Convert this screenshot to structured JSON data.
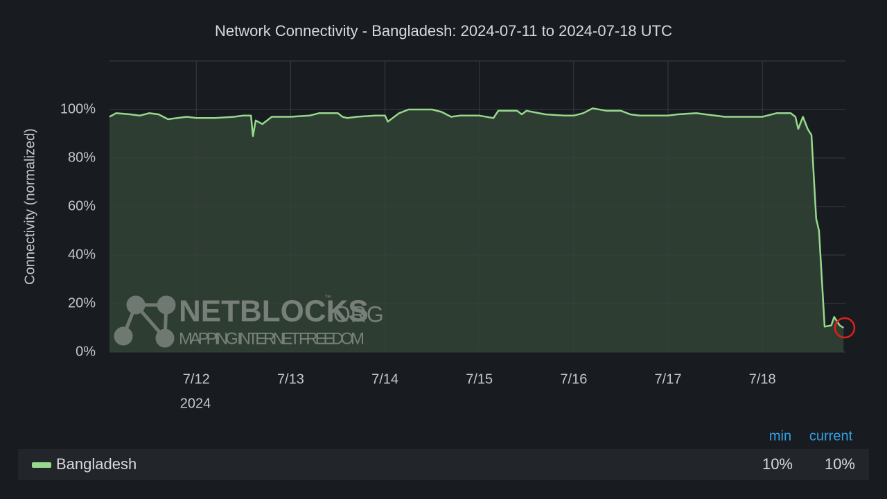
{
  "chart_data": {
    "type": "line",
    "title": "Network Connectivity - Bangladesh: 2024-07-11 to 2024-07-18 UTC",
    "y_label": "Connectivity (normalized)",
    "x_year_label": "2024",
    "watermark": {
      "brand": "NETBLOCKS",
      "suffix": ".ORG",
      "tm": "™",
      "tagline": "MAPPING INTERNET FREEDOM"
    },
    "xlim": [
      11.08,
      18.88
    ],
    "xticks": [
      {
        "value": 12,
        "label": "7/12"
      },
      {
        "value": 13,
        "label": "7/13"
      },
      {
        "value": 14,
        "label": "7/14"
      },
      {
        "value": 15,
        "label": "7/15"
      },
      {
        "value": 16,
        "label": "7/16"
      },
      {
        "value": 17,
        "label": "7/17"
      },
      {
        "value": 18,
        "label": "7/18"
      }
    ],
    "ylim": [
      0,
      120
    ],
    "yticks": [
      {
        "value": 0,
        "label": "0%"
      },
      {
        "value": 20,
        "label": "20%"
      },
      {
        "value": 40,
        "label": "40%"
      },
      {
        "value": 60,
        "label": "60%"
      },
      {
        "value": 80,
        "label": "80%"
      },
      {
        "value": 100,
        "label": "100%"
      }
    ],
    "grid": true,
    "series": [
      {
        "name": "Bangladesh",
        "color": "#96d98d",
        "x": [
          11.08,
          11.15,
          11.3,
          11.4,
          11.5,
          11.6,
          11.7,
          11.8,
          11.9,
          12.0,
          12.2,
          12.4,
          12.5,
          12.58,
          12.6,
          12.63,
          12.7,
          12.8,
          13.0,
          13.2,
          13.3,
          13.5,
          13.55,
          13.6,
          13.7,
          13.9,
          14.0,
          14.03,
          14.15,
          14.25,
          14.5,
          14.6,
          14.7,
          14.8,
          15.0,
          15.15,
          15.2,
          15.4,
          15.45,
          15.5,
          15.7,
          15.9,
          16.0,
          16.1,
          16.2,
          16.35,
          16.5,
          16.6,
          16.7,
          16.9,
          17.0,
          17.1,
          17.3,
          17.5,
          17.6,
          17.8,
          18.0,
          18.15,
          18.3,
          18.35,
          18.38,
          18.43,
          18.48,
          18.52,
          18.57,
          18.6,
          18.66,
          18.73,
          18.76,
          18.82,
          18.86
        ],
        "values": [
          97,
          98.5,
          98,
          97.5,
          98.5,
          98,
          96,
          96.5,
          97,
          96.5,
          96.5,
          97,
          97.5,
          97.5,
          89,
          95.5,
          94,
          97,
          97,
          97.5,
          98.5,
          98.5,
          97,
          96.5,
          97,
          97.5,
          97.5,
          95,
          98.5,
          100,
          100,
          99,
          97,
          97.5,
          97.5,
          96.5,
          99.5,
          99.5,
          98,
          99.5,
          98,
          97.5,
          97.5,
          98.5,
          100.5,
          99.5,
          99.5,
          98,
          97.5,
          97.5,
          97.5,
          98,
          98.5,
          97.5,
          97,
          97,
          97,
          98.5,
          98.5,
          97,
          92,
          97,
          92,
          89.5,
          55,
          50,
          10.5,
          11,
          14.5,
          11,
          10
        ]
      }
    ],
    "legend": {
      "columns": [
        "min",
        "current"
      ],
      "values": [
        10,
        10
      ],
      "value_labels": [
        "10%",
        "10%"
      ]
    }
  }
}
